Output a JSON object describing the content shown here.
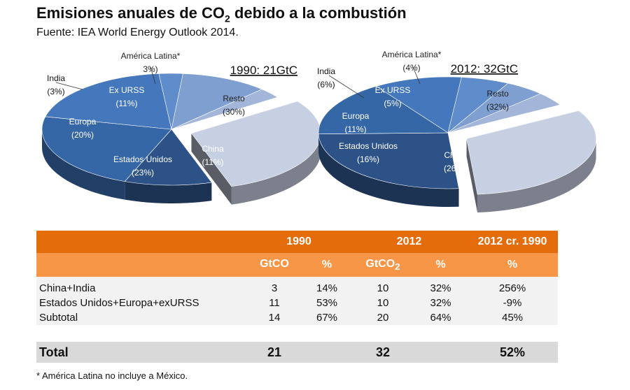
{
  "title_main": "Emisiones anuales de CO",
  "title_sub": "2",
  "title_rest": " debido a la combustión",
  "subtitle": "Fuente: IEA World Energy Outlook 2014.",
  "chart_data": [
    {
      "type": "pie",
      "title": "1990: 21GtC",
      "slices": [
        {
          "name": "Resto",
          "label": "(30%)",
          "value": 30,
          "color": "#c7cfe2",
          "exploded": true
        },
        {
          "name": "China",
          "label": "(11%)",
          "value": 11,
          "color": "#2d5288"
        },
        {
          "name": "Estados Unidos",
          "label": "(23%)",
          "value": 23,
          "color": "#3566a6"
        },
        {
          "name": "Europa",
          "label": "(20%)",
          "value": 20,
          "color": "#4477bb"
        },
        {
          "name": "India",
          "label": "(3%)",
          "value": 3,
          "color": "#5f8ccb"
        },
        {
          "name": "Ex URSS",
          "label": "(11%)",
          "value": 11,
          "color": "#7f9fd0"
        },
        {
          "name": "América Latina*",
          "label": "3%)",
          "value": 3,
          "color": "#a3b6da"
        }
      ]
    },
    {
      "type": "pie",
      "title": "2012: 32GtC",
      "slices": [
        {
          "name": "Resto",
          "label": "(32%)",
          "value": 32,
          "color": "#c7cfe2",
          "exploded": true
        },
        {
          "name": "China",
          "label": "(26%)",
          "value": 26,
          "color": "#2d5288"
        },
        {
          "name": "Estados Unidos",
          "label": "(16%)",
          "value": 16,
          "color": "#3566a6"
        },
        {
          "name": "Europa",
          "label": "(11%)",
          "value": 11,
          "color": "#4477bb"
        },
        {
          "name": "India",
          "label": "(6%)",
          "value": 6,
          "color": "#5f8ccb"
        },
        {
          "name": "Ex URSS",
          "label": "(5%)",
          "value": 5,
          "color": "#7f9fd0"
        },
        {
          "name": "América Latina*",
          "label": "(4%)",
          "value": 4,
          "color": "#a3b6da"
        }
      ]
    }
  ],
  "table": {
    "header_years": [
      "1990",
      "2012",
      "2012  cr. 1990"
    ],
    "header_units": {
      "gt_main": "GtCO",
      "gt_sub": "2",
      "pct": "%"
    },
    "rows": [
      {
        "label": "China+India",
        "gt1990": "3",
        "pct1990": "14%",
        "gt2012": "10",
        "pct2012": "32%",
        "change": "256%"
      },
      {
        "label": "Estados Unidos+Europa+exURSS",
        "gt1990": "11",
        "pct1990": "53%",
        "gt2012": "10",
        "pct2012": "32%",
        "change": "-9%"
      },
      {
        "label": "Subtotal",
        "gt1990": "14",
        "pct1990": "67%",
        "gt2012": "20",
        "pct2012": "64%",
        "change": "45%"
      }
    ],
    "total": {
      "label": "Total",
      "gt1990": "21",
      "gt2012": "32",
      "change": "52%"
    }
  },
  "footnote": "* América Latina no incluye a México."
}
